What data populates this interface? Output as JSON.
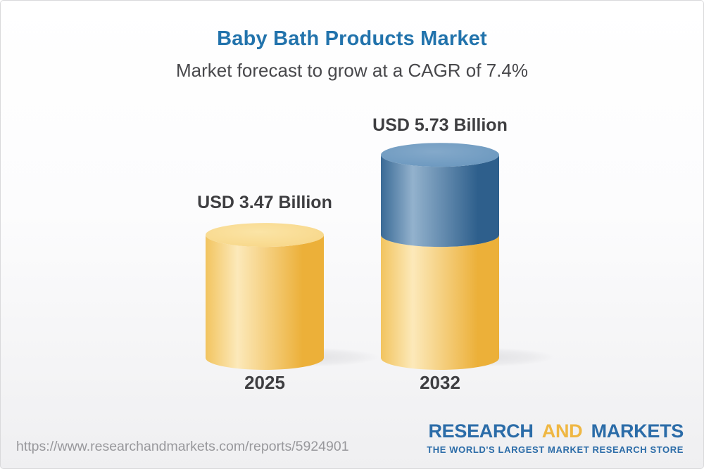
{
  "header": {
    "title": "Baby Bath Products Market",
    "subtitle": "Market forecast to grow at a CAGR of 7.4%",
    "title_color": "#2273AC"
  },
  "chart_data": {
    "type": "bar",
    "variant": "3d-cylinder",
    "title": "Baby Bath Products Market",
    "subtitle": "Market forecast to grow at a CAGR of 7.4%",
    "cagr_percent": 7.4,
    "unit": "USD Billion",
    "categories": [
      "2025",
      "2032"
    ],
    "values": [
      3.47,
      5.73
    ],
    "legend": false,
    "grid": false,
    "points": [
      {
        "year": "2025",
        "label": "USD 3.47 Billion",
        "value": 3.47,
        "segments": [
          {
            "value": 3.47,
            "color": "gold"
          }
        ]
      },
      {
        "year": "2032",
        "label": "USD 5.73 Billion",
        "value": 5.73,
        "segments": [
          {
            "value": 3.47,
            "color": "gold"
          },
          {
            "value": 2.26,
            "color": "blue"
          }
        ]
      }
    ],
    "colors": {
      "gold": {
        "edge_left": "#F2C45F",
        "highlight": "#FCE9BA",
        "edge_right": "#ECB039",
        "top_main": "#F7D584",
        "top_light": "#FBE4A6"
      },
      "blue": {
        "edge_left": "#3A6A96",
        "highlight": "#93B2CD",
        "edge_right": "#2E5F8C",
        "top_main": "#6795BD",
        "top_light": "#84A9CA"
      }
    }
  },
  "footer": {
    "url": "https://www.researchandmarkets.com/reports/5924901",
    "logo": {
      "part1": "RESEARCH",
      "part2": "AND",
      "part3": "MARKETS",
      "tagline": "THE WORLD'S LARGEST MARKET RESEARCH STORE",
      "blue": "#2B6CA8",
      "gold": "#EFB743"
    }
  }
}
